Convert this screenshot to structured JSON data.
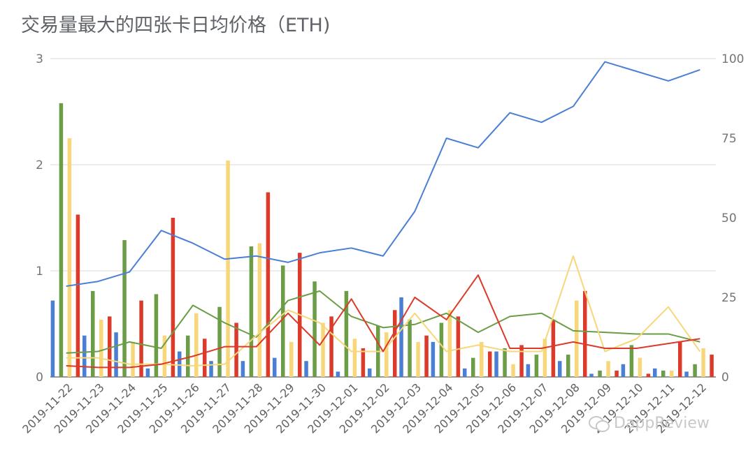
{
  "chart_data": {
    "type": "bar",
    "title": "交易量最大的四张卡日均价格（ETH)",
    "categories": [
      "2019-11-22",
      "2019-11-23",
      "2019-11-24",
      "2019-11-25",
      "2019-11-26",
      "2019-11-27",
      "2019-11-28",
      "2019-11-29",
      "2019-11-30",
      "2019-12-01",
      "2019-12-02",
      "2019-12-03",
      "2019-12-04",
      "2019-12-05",
      "2019-12-06",
      "2019-12-07",
      "2019-12-08",
      "2019-12-09",
      "2019-12-10",
      "2019-12-11",
      "2019-12-12"
    ],
    "left_axis": {
      "ylim": [
        0,
        3
      ],
      "ticks": [
        "0",
        "1",
        "2",
        "3"
      ]
    },
    "right_axis": {
      "ylim": [
        0,
        100
      ],
      "ticks": [
        "0",
        "25",
        "50",
        "75",
        "100"
      ]
    },
    "grid": true,
    "legend": "none",
    "bar_series": [
      {
        "color": "#4a7fd4",
        "axis": "left",
        "values": [
          0.72,
          0.39,
          0.42,
          0.08,
          0.24,
          0.15,
          0.15,
          0.18,
          0.15,
          0.05,
          0.08,
          0.75,
          0.33,
          0.08,
          0.24,
          0.12,
          0.15,
          0.03,
          0.12,
          0.08,
          0.05
        ]
      },
      {
        "color": "#6a9d46",
        "axis": "left",
        "values": [
          2.58,
          0.81,
          1.29,
          0.78,
          0.39,
          0.66,
          1.23,
          1.05,
          0.9,
          0.81,
          0.48,
          0.54,
          0.51,
          0.18,
          0.27,
          0.21,
          0.21,
          0.06,
          0.3,
          0.06,
          0.12
        ]
      },
      {
        "color": "#f7d77a",
        "axis": "left",
        "values": [
          2.25,
          0.54,
          0.33,
          0.39,
          0.6,
          2.04,
          1.26,
          0.33,
          0.51,
          0.36,
          0.42,
          0.33,
          0.63,
          0.33,
          0.12,
          0.36,
          0.72,
          0.15,
          0.18,
          0.06,
          0.27
        ]
      },
      {
        "color": "#dc3a2a",
        "axis": "left",
        "values": [
          1.53,
          0.57,
          0.72,
          1.5,
          0.36,
          0.51,
          1.74,
          1.17,
          0.57,
          0.27,
          0.63,
          0.39,
          0.57,
          0.24,
          0.3,
          0.54,
          0.81,
          0.06,
          0.03,
          0.33,
          0.21
        ]
      }
    ],
    "line_series": [
      {
        "color": "#4a7fd4",
        "axis": "right",
        "values": [
          28.5,
          30,
          33,
          46,
          42,
          37,
          38,
          36,
          39,
          40.5,
          38,
          52,
          75,
          72,
          83,
          80,
          85,
          99,
          96,
          93,
          96.5
        ]
      },
      {
        "color": "#6a9d46",
        "axis": "right",
        "values": [
          7.5,
          8,
          11,
          9,
          22.5,
          17,
          12.5,
          24,
          27,
          19,
          15.5,
          16.5,
          20,
          14,
          19,
          20,
          14.5,
          14,
          13.5,
          13.5,
          11
        ]
      },
      {
        "color": "#f7d77a",
        "axis": "right",
        "values": [
          6,
          6,
          4,
          4,
          3.5,
          4,
          13,
          21,
          17,
          8,
          8,
          20,
          8,
          10,
          8,
          8,
          38,
          8,
          12,
          22,
          8
        ]
      },
      {
        "color": "#dc3a2a",
        "axis": "right",
        "values": [
          3.5,
          3,
          3,
          4,
          6.5,
          9.5,
          9.5,
          20,
          10,
          24.5,
          8,
          25,
          18,
          32,
          9,
          9,
          11,
          9,
          9,
          10.5,
          12
        ]
      }
    ]
  },
  "watermark": {
    "text": "DappReview"
  }
}
